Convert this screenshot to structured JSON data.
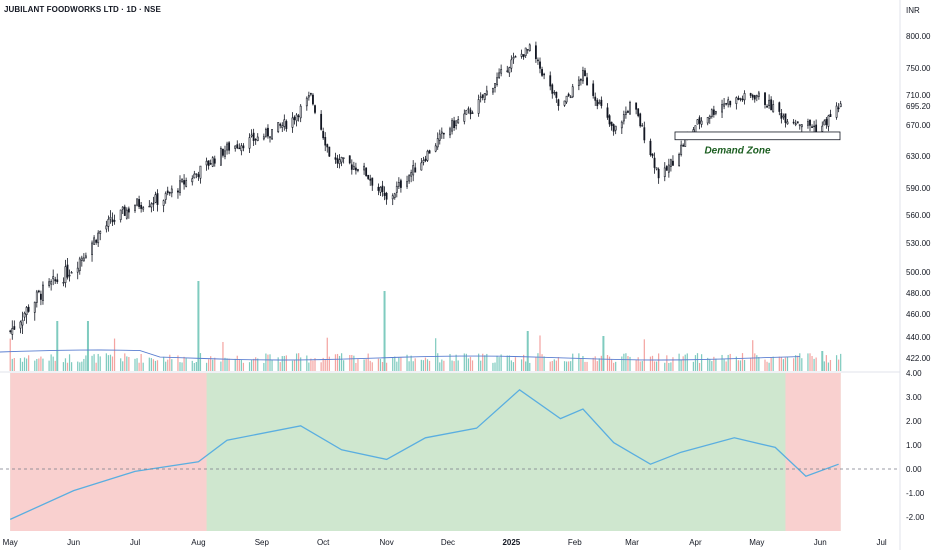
{
  "header": {
    "title": "JUBILANT FOODWORKS LTD · 1D · NSE",
    "currency": "INR"
  },
  "colors": {
    "up": "#131722",
    "volume_up": "#7fcbbf",
    "volume_down": "#f4a4a1",
    "volume_ma": "#5b7fd1",
    "indicator_line": "#5aaee0",
    "bg_positive": "#cfe7cf",
    "bg_negative": "#f9d0cf"
  },
  "chart_data": [
    {
      "type": "candlestick",
      "series": [
        {
          "name": "Price",
          "values": [
            {
              "date": "2024-05-01",
              "close": 445
            },
            {
              "date": "2024-05-15",
              "close": 478
            },
            {
              "date": "2024-06-01",
              "close": 505
            },
            {
              "date": "2024-06-15",
              "close": 545
            },
            {
              "date": "2024-07-01",
              "close": 572
            },
            {
              "date": "2024-07-15",
              "close": 578
            },
            {
              "date": "2024-08-01",
              "close": 610
            },
            {
              "date": "2024-08-15",
              "close": 640
            },
            {
              "date": "2024-09-01",
              "close": 655
            },
            {
              "date": "2024-09-15",
              "close": 675
            },
            {
              "date": "2024-09-25",
              "close": 708
            },
            {
              "date": "2024-10-05",
              "close": 625
            },
            {
              "date": "2024-10-20",
              "close": 615
            },
            {
              "date": "2024-11-01",
              "close": 575
            },
            {
              "date": "2024-11-15",
              "close": 615
            },
            {
              "date": "2024-12-01",
              "close": 665
            },
            {
              "date": "2024-12-15",
              "close": 695
            },
            {
              "date": "2025-01-01",
              "close": 760
            },
            {
              "date": "2025-01-10",
              "close": 780
            },
            {
              "date": "2025-01-25",
              "close": 690
            },
            {
              "date": "2025-02-05",
              "close": 740
            },
            {
              "date": "2025-02-20",
              "close": 660
            },
            {
              "date": "2025-03-01",
              "close": 700
            },
            {
              "date": "2025-03-15",
              "close": 600
            },
            {
              "date": "2025-04-01",
              "close": 670
            },
            {
              "date": "2025-04-15",
              "close": 700
            },
            {
              "date": "2025-05-01",
              "close": 710
            },
            {
              "date": "2025-05-15",
              "close": 680
            },
            {
              "date": "2025-06-01",
              "close": 665
            },
            {
              "date": "2025-06-10",
              "close": 695
            }
          ]
        }
      ],
      "annotations": [
        {
          "label": "Demand Zone",
          "y_range": [
            651,
            661
          ]
        }
      ],
      "yticks": [
        "800.00",
        "750.00",
        "710.00",
        "695.20",
        "670.00",
        "630.00",
        "590.00",
        "560.00",
        "530.00",
        "500.00",
        "480.00",
        "460.00",
        "440.00",
        "422.00"
      ],
      "xticks": [
        "May",
        "Jun",
        "Jul",
        "Aug",
        "Sep",
        "Oct",
        "Nov",
        "Dec",
        "2025",
        "Feb",
        "Mar",
        "Apr",
        "May",
        "Jun",
        "Jul"
      ]
    },
    {
      "type": "bar",
      "series": [
        {
          "name": "Volume",
          "values": []
        }
      ],
      "moving_average": true
    },
    {
      "type": "line",
      "yticks": [
        "4.00",
        "3.00",
        "2.00",
        "1.00",
        "0.00",
        "-1.00",
        "-2.00"
      ],
      "ylim": [
        -2.5,
        4.0
      ],
      "zero_line": true
    }
  ]
}
